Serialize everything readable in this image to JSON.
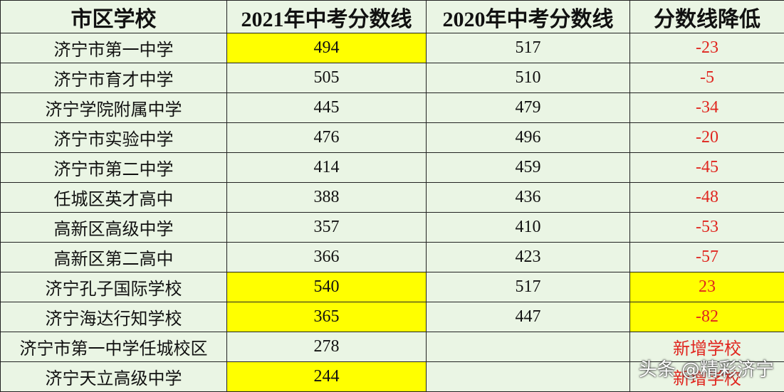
{
  "table": {
    "header": [
      "市区学校",
      "2021年中考分数线",
      "2020年中考分数线",
      "分数线降低"
    ],
    "rows": [
      [
        "济宁市第一中学",
        494,
        517,
        -23
      ],
      [
        "济宁市育才中学",
        505,
        510,
        -5
      ],
      [
        "济宁学院附属中学",
        445,
        479,
        -34
      ],
      [
        "济宁市实验中学",
        476,
        496,
        -20
      ],
      [
        "济宁市第二中学",
        414,
        459,
        -45
      ],
      [
        "任城区英才高中",
        388,
        436,
        -48
      ],
      [
        "高新区高级中学",
        357,
        410,
        -53
      ],
      [
        "高新区第二高中",
        366,
        423,
        -57
      ],
      [
        "济宁孔子国际学校",
        540,
        517,
        23
      ],
      [
        "济宁海达行知学校",
        365,
        447,
        -82
      ],
      [
        "济宁市第一中学任城校区",
        278,
        null,
        "新增学校"
      ],
      [
        "济宁天立高级中学",
        244,
        null,
        "新增学校"
      ]
    ],
    "highlight": [
      [
        0,
        1
      ],
      [
        8,
        1
      ],
      [
        8,
        3
      ],
      [
        9,
        1
      ],
      [
        9,
        3
      ],
      [
        11,
        1
      ]
    ]
  },
  "watermark": "头条 @精彩济宁"
}
